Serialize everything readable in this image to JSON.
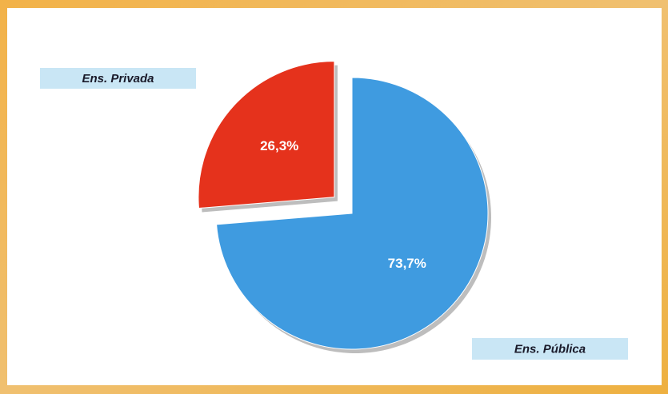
{
  "chart_data": {
    "type": "pie",
    "categories": [
      "Ens. Privada",
      "Ens. Pública"
    ],
    "values": [
      26.3,
      73.7
    ],
    "value_labels": [
      "26,3%",
      "73,7%"
    ],
    "colors": [
      "#e5321c",
      "#3f9be0"
    ]
  }
}
